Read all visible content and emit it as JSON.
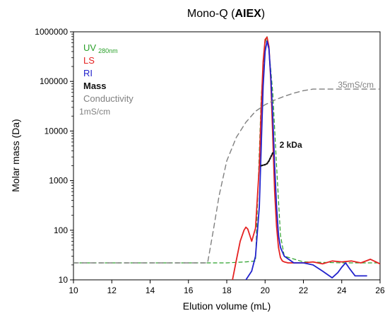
{
  "chart_data": {
    "type": "line",
    "title_prefix": "Mono-Q (",
    "title_bold": "AIEX",
    "title_suffix": ")",
    "xlabel": "Elution volume (mL)",
    "ylabel": "Molar mass (Da)",
    "xlim": [
      10,
      26
    ],
    "ylim": [
      10,
      1000000
    ],
    "yscale": "log",
    "x_ticks": [
      10,
      12,
      14,
      16,
      18,
      20,
      22,
      24,
      26
    ],
    "y_ticks": [
      {
        "value": 10,
        "label": "10"
      },
      {
        "value": 100,
        "label": "100"
      },
      {
        "value": 1000,
        "label": "1000"
      },
      {
        "value": 10000,
        "label": "10000"
      },
      {
        "value": 100000,
        "label": "100000"
      },
      {
        "value": 1000000,
        "label": "1000000"
      }
    ],
    "legend": [
      {
        "name": "UV",
        "sub": "280nm",
        "color": "#2aa02a"
      },
      {
        "name": "LS",
        "sub": "",
        "color": "#e52222"
      },
      {
        "name": "RI",
        "sub": "",
        "color": "#2222cc"
      },
      {
        "name": "Mass",
        "sub": "",
        "color": "#111111"
      },
      {
        "name": "Conductivity",
        "sub": "",
        "color": "#808080"
      }
    ],
    "annotations": [
      {
        "text": "35mS/cm",
        "x": 23.8,
        "y": 75000,
        "color": "#808080"
      },
      {
        "text": "1mS/cm",
        "x": 10.3,
        "y": 21500,
        "color": "#808080",
        "y_is_raw": false
      },
      {
        "text": "2 kDa",
        "x": 20.75,
        "y": 4600,
        "color": "#111111"
      }
    ],
    "series": [
      {
        "name": "UV",
        "color": "#2aa02a",
        "dash": "5,4",
        "width": 1.2,
        "x": [
          10,
          18.0,
          19.0,
          19.5,
          19.8,
          20.0,
          20.1,
          20.2,
          20.4,
          20.6,
          20.8,
          21.0,
          22.0,
          24.0,
          26.0
        ],
        "y": [
          22,
          22,
          23,
          24,
          50000,
          600000,
          800000,
          450000,
          60000,
          2000,
          80,
          30,
          23,
          22,
          22
        ]
      },
      {
        "name": "LS",
        "color": "#e52222",
        "dash": "",
        "width": 1.8,
        "x": [
          18.3,
          18.5,
          18.7,
          18.9,
          19.0,
          19.1,
          19.2,
          19.3,
          19.5,
          19.7,
          19.8,
          19.9,
          20.0,
          20.1,
          20.2,
          20.3,
          20.4,
          20.5,
          20.6,
          20.7,
          20.8,
          20.9,
          21.0,
          21.2,
          21.5,
          22.0,
          22.5,
          23.0,
          23.5,
          24.0,
          24.5,
          25.0,
          25.5,
          26.0
        ],
        "y": [
          10,
          25,
          60,
          100,
          115,
          105,
          80,
          60,
          110,
          2000,
          30000,
          250000,
          700000,
          780000,
          500000,
          100000,
          8000,
          600,
          120,
          45,
          28,
          24,
          23,
          22,
          22,
          22,
          23,
          21,
          24,
          23,
          24,
          22,
          26,
          21
        ]
      },
      {
        "name": "RI",
        "color": "#2222cc",
        "dash": "",
        "width": 1.8,
        "x": [
          19.0,
          19.3,
          19.5,
          19.7,
          19.8,
          19.9,
          20.0,
          20.1,
          20.2,
          20.3,
          20.4,
          20.5,
          20.6,
          20.7,
          20.8,
          21.0,
          21.5,
          22.0,
          22.5,
          23.0,
          23.5,
          23.8,
          24.0,
          24.2,
          24.4,
          24.7,
          25.0,
          25.3
        ],
        "y": [
          10,
          15,
          30,
          300,
          5000,
          80000,
          400000,
          650000,
          450000,
          120000,
          20000,
          2000,
          300,
          80,
          45,
          30,
          22,
          22,
          20,
          15,
          11,
          14,
          18,
          22,
          17,
          12,
          12,
          12
        ]
      },
      {
        "name": "Mass",
        "color": "#111111",
        "dash": "2,2",
        "width": 2.2,
        "x": [
          19.8,
          19.9,
          20.0,
          20.1,
          20.2,
          20.3,
          20.4
        ],
        "y": [
          2000,
          2050,
          2100,
          2200,
          2500,
          3000,
          3600
        ]
      },
      {
        "name": "Conductivity",
        "color": "#808080",
        "dash": "7,5",
        "width": 1.4,
        "x": [
          10,
          17.0,
          17.3,
          17.6,
          18.0,
          18.5,
          19.0,
          19.5,
          20.0,
          20.5,
          21.0,
          21.5,
          22.0,
          22.5,
          23.0,
          23.5,
          24.0,
          25.0,
          26.0
        ],
        "y": [
          22,
          22,
          100,
          500,
          2500,
          7500,
          15000,
          25000,
          34000,
          42000,
          50000,
          58000,
          65000,
          70000,
          70000,
          70000,
          70000,
          70000,
          70000
        ]
      }
    ]
  }
}
